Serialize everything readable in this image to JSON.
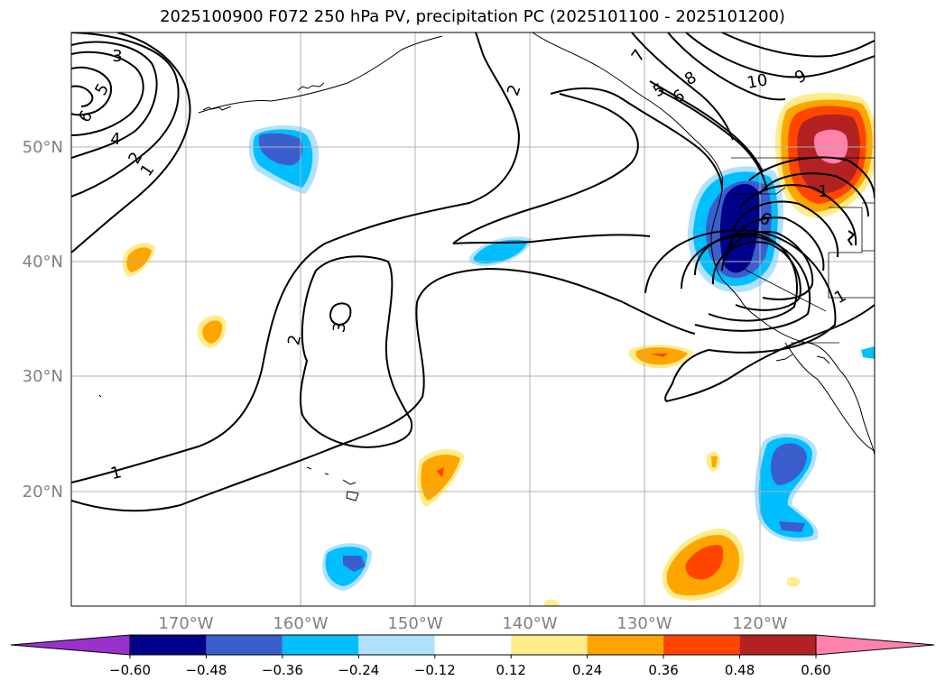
{
  "title": "2025100900 F072 250 hPa PV, precipitation PC (2025101100 - 2025101200)",
  "axes": {
    "lat_labels": [
      "50°N",
      "40°N",
      "30°N",
      "20°N"
    ],
    "lon_labels": [
      "170°W",
      "160°W",
      "150°W",
      "140°W",
      "130°W",
      "120°W"
    ],
    "lat_range": [
      10,
      60
    ],
    "lon_range": [
      -180,
      -110
    ],
    "label_color": "#808080",
    "grid": true
  },
  "contour_labels": [
    "3",
    "5",
    "6",
    "4",
    "2",
    "1",
    "2",
    "7",
    "8",
    "10",
    "9",
    "5",
    "6",
    "6",
    "1",
    "1",
    "2",
    "3",
    "1"
  ],
  "colorbar": {
    "colors": [
      "#9932cc",
      "#00008b",
      "#3a5fcd",
      "#00bfff",
      "#b0e2ff",
      "#ffffff",
      "#ffec8b",
      "#ffa500",
      "#ff4500",
      "#b22222",
      "#ff82ab"
    ],
    "tick_labels": [
      "−0.60",
      "−0.48",
      "−0.36",
      "−0.24",
      "−0.12",
      "0.12",
      "0.24",
      "0.36",
      "0.48",
      "0.60"
    ],
    "extend": "both"
  }
}
